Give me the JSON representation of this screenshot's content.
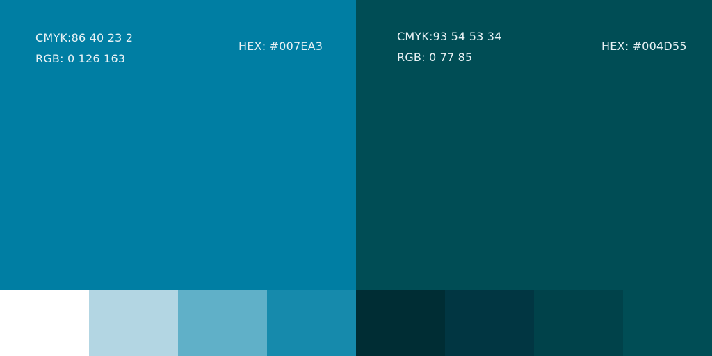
{
  "panels": [
    {
      "cmyk": "CMYK:86 40 23 2",
      "rgb": "RGB: 0 126 163",
      "hex": "HEX: #007EA3",
      "color": "#007EA3"
    },
    {
      "cmyk": "CMYK:93 54 53 34",
      "rgb": "RGB: 0 77 85",
      "hex": "HEX: #004D55",
      "color": "#004D55"
    }
  ],
  "swatches": [
    "#FFFFFF",
    "#B3D6E3",
    "#60B0C8",
    "#168AAC",
    "#002D34",
    "#013642",
    "#00424A",
    "#004D55"
  ]
}
